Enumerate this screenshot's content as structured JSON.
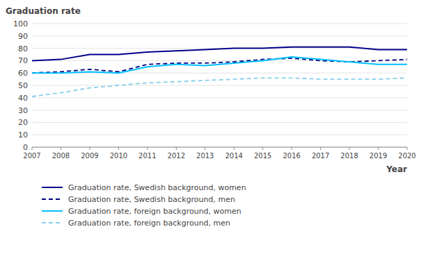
{
  "chart_data": {
    "type": "line",
    "ylabel": "Graduation rate",
    "xlabel": "Year",
    "x": [
      2007,
      2008,
      2009,
      2010,
      2011,
      2012,
      2013,
      2014,
      2015,
      2016,
      2017,
      2018,
      2019,
      2020
    ],
    "series": [
      {
        "name": "Graduation rate, Swedish background, women",
        "color": "#00008B",
        "line_style": "solid",
        "values": [
          70,
          71,
          75,
          75,
          77,
          78,
          79,
          80,
          80,
          81,
          81,
          81,
          79,
          79
        ]
      },
      {
        "name": "Graduation rate, Swedish background, men",
        "color": "#000080",
        "line_style": "dashed",
        "values": [
          60,
          61,
          63,
          61,
          67,
          68,
          68,
          69,
          71,
          72,
          70,
          69,
          70,
          71
        ]
      },
      {
        "name": "Graduation rate, foreign background, women",
        "color": "#00BFFF",
        "line_style": "solid",
        "values": [
          60,
          60,
          61,
          60,
          65,
          67,
          66,
          68,
          70,
          73,
          71,
          69,
          67,
          67
        ]
      },
      {
        "name": "Graduation rate, foreign background, men",
        "color": "#87CEEB",
        "line_style": "dashed",
        "values": [
          41,
          44,
          48,
          50,
          52,
          53,
          54,
          55,
          56,
          56,
          55,
          55,
          55,
          56
        ]
      }
    ],
    "xlim": [
      2007,
      2020
    ],
    "xticks": [
      2007,
      2008,
      2009,
      2010,
      2011,
      2012,
      2013,
      2014,
      2015,
      2016,
      2017,
      2018,
      2019,
      2020
    ],
    "ylim": [
      0,
      100
    ],
    "yticks": [
      0,
      10,
      20,
      30,
      40,
      50,
      60,
      70,
      80,
      90,
      100
    ],
    "grid": true,
    "legend": "bottom"
  }
}
